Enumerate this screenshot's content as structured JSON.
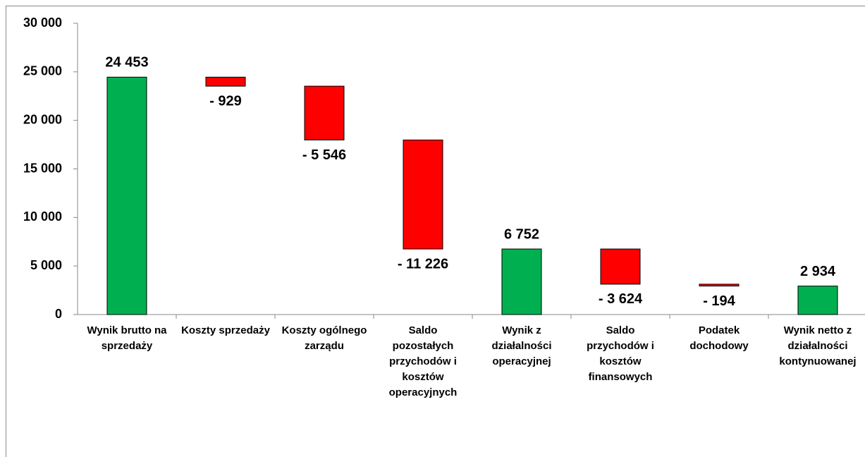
{
  "chart_data": {
    "type": "waterfall",
    "categories": [
      "Wynik brutto na sprzedaży",
      "Koszty sprzedaży",
      "Koszty ogólnego zarządu",
      "Saldo pozostałych przychodów i kosztów operacyjnych",
      "Wynik z działalności operacyjnej",
      "Saldo przychodów i kosztów finansowych",
      "Podatek dochodowy",
      "Wynik netto z działalności kontynuowanej"
    ],
    "values": [
      24453,
      -929,
      -5546,
      -11226,
      6752,
      -3624,
      -194,
      2934
    ],
    "value_labels": [
      "24 453",
      "- 929",
      "- 5 546",
      "- 11 226",
      "6 752",
      "- 3 624",
      "- 194",
      "2 934"
    ],
    "totals": [
      0,
      4,
      7
    ],
    "total_color": "#00b050",
    "decrease_color": "#ff0000",
    "ylim": [
      0,
      30000
    ],
    "yticks": [
      {
        "value": 0,
        "label": "0"
      },
      {
        "value": 5000,
        "label": "5 000"
      },
      {
        "value": 10000,
        "label": "10 000"
      },
      {
        "value": 15000,
        "label": "15 000"
      },
      {
        "value": 20000,
        "label": "20 000"
      },
      {
        "value": 25000,
        "label": "25 000"
      },
      {
        "value": 30000,
        "label": "30 000"
      }
    ]
  }
}
